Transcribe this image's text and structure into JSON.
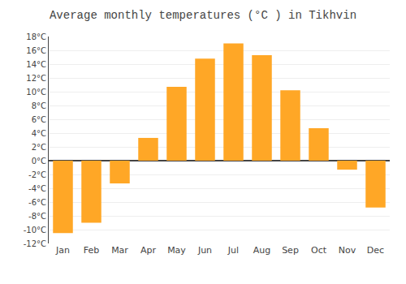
{
  "chart_data": {
    "type": "bar",
    "title": "Average monthly temperatures (°C ) in Tikhvin",
    "categories": [
      "Jan",
      "Feb",
      "Mar",
      "Apr",
      "May",
      "Jun",
      "Jul",
      "Aug",
      "Sep",
      "Oct",
      "Nov",
      "Dec"
    ],
    "values": [
      -10.5,
      -9.0,
      -3.3,
      3.3,
      10.7,
      14.8,
      17.0,
      15.3,
      10.2,
      4.7,
      -1.3,
      -6.8
    ],
    "color": "#FFA726",
    "ylim": [
      -12,
      18
    ],
    "yticks": [
      {
        "value": -12,
        "label": "-12°C"
      },
      {
        "value": -10,
        "label": "-10°C"
      },
      {
        "value": -8,
        "label": "-8°C"
      },
      {
        "value": -6,
        "label": "-6°C"
      },
      {
        "value": -4,
        "label": "-4°C"
      },
      {
        "value": -2,
        "label": "-2°C"
      },
      {
        "value": 0,
        "label": "0°C"
      },
      {
        "value": 2,
        "label": "2°C"
      },
      {
        "value": 4,
        "label": "4°C"
      },
      {
        "value": 6,
        "label": "6°C"
      },
      {
        "value": 8,
        "label": "8°C"
      },
      {
        "value": 10,
        "label": "10°C"
      },
      {
        "value": 12,
        "label": "12°C"
      },
      {
        "value": 14,
        "label": "14°C"
      },
      {
        "value": 16,
        "label": "16°C"
      },
      {
        "value": 18,
        "label": "18°C"
      }
    ],
    "grid": true
  }
}
